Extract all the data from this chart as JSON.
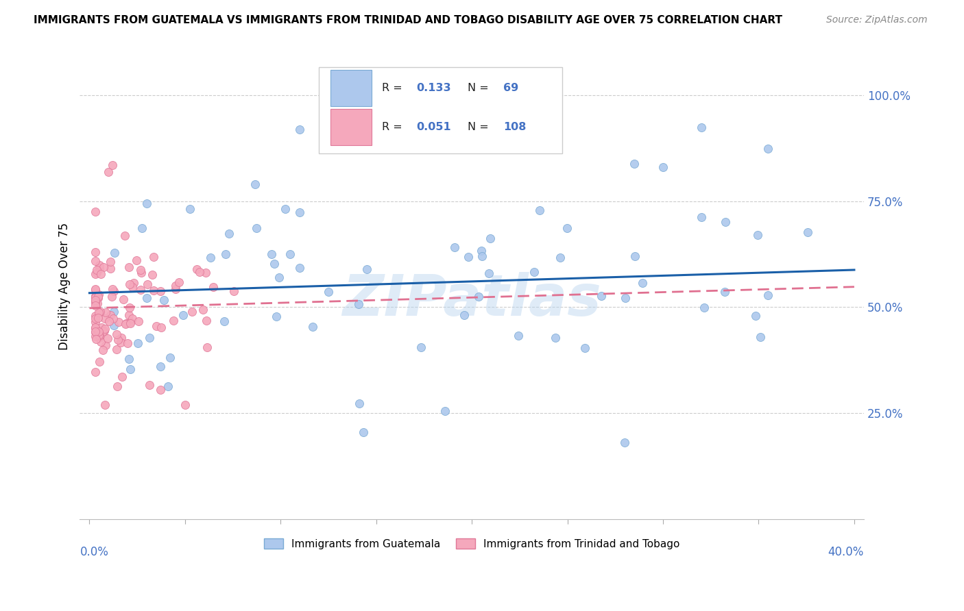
{
  "title": "IMMIGRANTS FROM GUATEMALA VS IMMIGRANTS FROM TRINIDAD AND TOBAGO DISABILITY AGE OVER 75 CORRELATION CHART",
  "source": "Source: ZipAtlas.com",
  "ylabel": "Disability Age Over 75",
  "ytick_labels": [
    "100.0%",
    "75.0%",
    "50.0%",
    "25.0%"
  ],
  "ytick_positions": [
    1.0,
    0.75,
    0.5,
    0.25
  ],
  "xlim": [
    0.0,
    0.4
  ],
  "ylim": [
    0.0,
    1.1
  ],
  "legend_R1": "0.133",
  "legend_N1": "69",
  "legend_R2": "0.051",
  "legend_N2": "108",
  "blue_color": "#adc8ed",
  "pink_color": "#f5a8bc",
  "blue_edge_color": "#7aaad4",
  "pink_edge_color": "#e07898",
  "blue_line_color": "#1a5fa8",
  "pink_line_color": "#e07090",
  "watermark": "ZIPatlas",
  "label1": "Immigrants from Guatemala",
  "label2": "Immigrants from Trinidad and Tobago",
  "title_fontsize": 11,
  "source_fontsize": 10,
  "axis_label_fontsize": 12,
  "tick_label_fontsize": 12
}
